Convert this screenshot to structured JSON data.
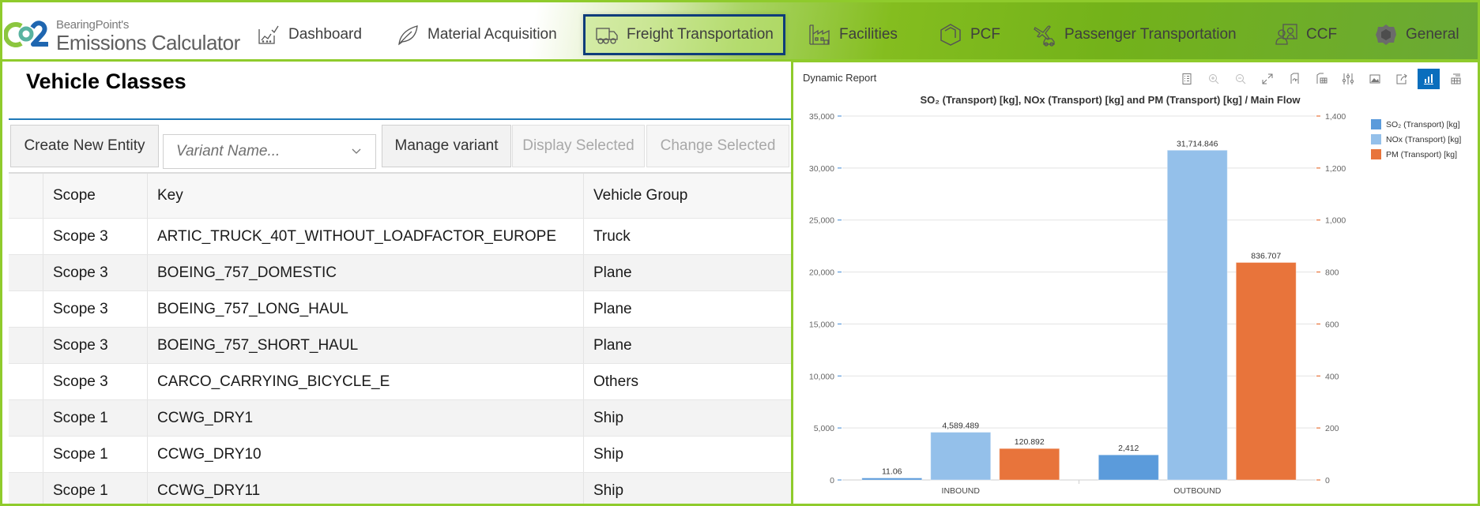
{
  "app": {
    "logo_small": "BearingPoint's",
    "logo_big": "Emissions Calculator"
  },
  "nav": {
    "items": [
      {
        "label": "Dashboard",
        "icon": "dashboard-chart-icon"
      },
      {
        "label": "Material Acquisition",
        "icon": "leaf-icon"
      },
      {
        "label": "Freight Transportation",
        "icon": "truck-icon",
        "active": true
      },
      {
        "label": "Facilities",
        "icon": "factory-icon"
      },
      {
        "label": "PCF",
        "icon": "hexagon-box-icon"
      },
      {
        "label": "Passenger Transportation",
        "icon": "plane-car-icon"
      },
      {
        "label": "CCF",
        "icon": "users-icon"
      },
      {
        "label": "General",
        "icon": "gear-icon"
      }
    ]
  },
  "page": {
    "title": "Vehicle Classes"
  },
  "toolbar": {
    "create_label": "Create New Entity",
    "variant_placeholder": "Variant Name...",
    "manage_label": "Manage variant",
    "display_label": "Display Selected",
    "change_label": "Change Selected"
  },
  "table": {
    "columns": [
      "Scope",
      "Key",
      "Vehicle Group"
    ],
    "rows": [
      {
        "scope": "Scope 3",
        "key": "ARTIC_TRUCK_40T_WITHOUT_LOADFACTOR_EUROPE",
        "group": "Truck"
      },
      {
        "scope": "Scope 3",
        "key": "BOEING_757_DOMESTIC",
        "group": "Plane"
      },
      {
        "scope": "Scope 3",
        "key": "BOEING_757_LONG_HAUL",
        "group": "Plane"
      },
      {
        "scope": "Scope 3",
        "key": "BOEING_757_SHORT_HAUL",
        "group": "Plane"
      },
      {
        "scope": "Scope 3",
        "key": "CARCO_CARRYING_BICYCLE_E",
        "group": "Others"
      },
      {
        "scope": "Scope 1",
        "key": "CCWG_DRY1",
        "group": "Ship"
      },
      {
        "scope": "Scope 1",
        "key": "CCWG_DRY10",
        "group": "Ship"
      },
      {
        "scope": "Scope 1",
        "key": "CCWG_DRY11",
        "group": "Ship"
      }
    ]
  },
  "report": {
    "label": "Dynamic Report",
    "toolbar_icons": [
      "legend-icon",
      "zoom-in-icon",
      "zoom-out-icon",
      "fullscreen-icon",
      "export-pdf-icon",
      "export-excel-icon",
      "settings-sliders-icon",
      "image-icon",
      "share-icon",
      "bar-chart-icon",
      "table-view-icon"
    ]
  },
  "colors": {
    "brand_green": "#8fcb2c",
    "nav_active_border": "#0e3c7a",
    "rule_blue": "#1f79b8",
    "so2": "#5b9bdb",
    "nox": "#94c0ea",
    "pm": "#e8743b",
    "toolbar_active": "#0a6ebd"
  },
  "chart_data": {
    "type": "bar",
    "title": "SO₂ (Transport) [kg], NOx (Transport) [kg] and PM (Transport) [kg] / Main Flow",
    "categories": [
      "INBOUND",
      "OUTBOUND"
    ],
    "series": [
      {
        "name": "SO₂ (Transport) [kg]",
        "axis": "left",
        "values": [
          11.06,
          2412
        ],
        "labels": [
          "11.06",
          "2,412"
        ]
      },
      {
        "name": "NOx (Transport) [kg]",
        "axis": "left",
        "values": [
          4589.489,
          31714.846
        ],
        "labels": [
          "4,589.489",
          "31,714.846"
        ]
      },
      {
        "name": "PM (Transport) [kg]",
        "axis": "right",
        "values": [
          120.892,
          836.707
        ],
        "labels": [
          "120.892",
          "836.707"
        ]
      }
    ],
    "y_left": {
      "range": [
        0,
        35000
      ],
      "ticks": [
        0,
        5000,
        10000,
        15000,
        20000,
        25000,
        30000,
        35000
      ],
      "tick_labels": [
        "0",
        "5,000",
        "10,000",
        "15,000",
        "20,000",
        "25,000",
        "30,000",
        "35,000"
      ]
    },
    "y_right": {
      "range": [
        0,
        1400
      ],
      "ticks": [
        0,
        200,
        400,
        600,
        800,
        1000,
        1200,
        1400
      ],
      "tick_labels": [
        "0",
        "200",
        "400",
        "600",
        "800",
        "1,000",
        "1,200",
        "1,400"
      ]
    },
    "xlabel": "",
    "ylabel": "",
    "grid": true,
    "legend_position": "right-top"
  }
}
